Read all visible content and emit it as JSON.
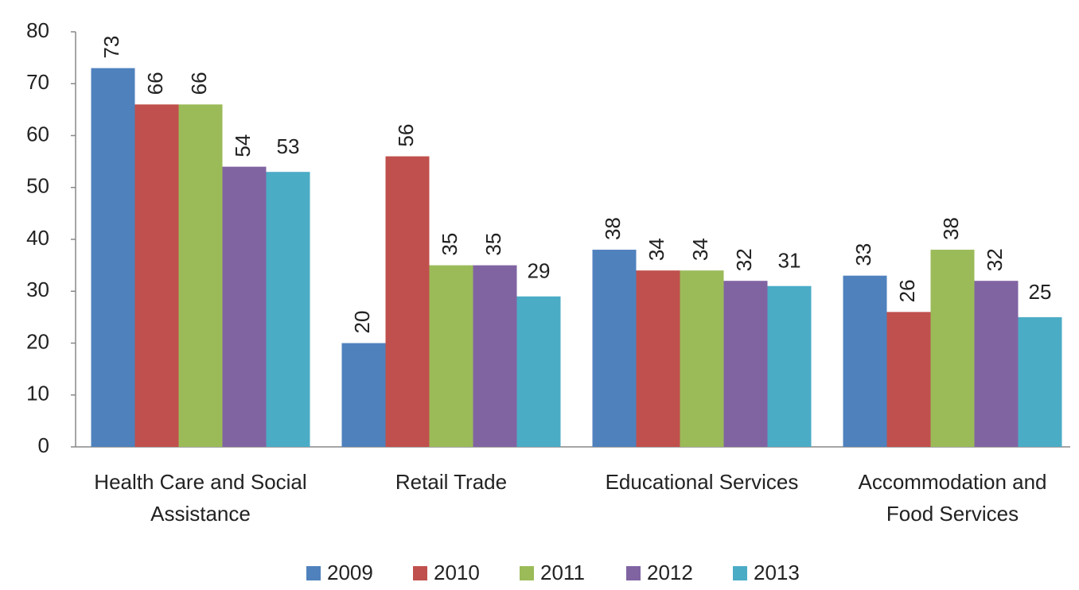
{
  "chart_data": {
    "type": "bar",
    "categories": [
      "Health Care and Social Assistance",
      "Retail Trade",
      "Educational Services",
      "Accommodation and Food Services"
    ],
    "series": [
      {
        "name": "2009",
        "color": "#4f81bd",
        "values": [
          73,
          20,
          38,
          33
        ]
      },
      {
        "name": "2010",
        "color": "#c0504d",
        "values": [
          66,
          56,
          34,
          26
        ]
      },
      {
        "name": "2011",
        "color": "#9bbb59",
        "values": [
          66,
          35,
          34,
          38
        ]
      },
      {
        "name": "2012",
        "color": "#8064a2",
        "values": [
          54,
          35,
          32,
          32
        ]
      },
      {
        "name": "2013",
        "color": "#4bacc6",
        "values": [
          53,
          29,
          31,
          25
        ]
      }
    ],
    "ylim": [
      0,
      80
    ],
    "yticks": [
      0,
      10,
      20,
      30,
      40,
      50,
      60,
      70,
      80
    ],
    "grid": false,
    "legend": "bottom"
  }
}
